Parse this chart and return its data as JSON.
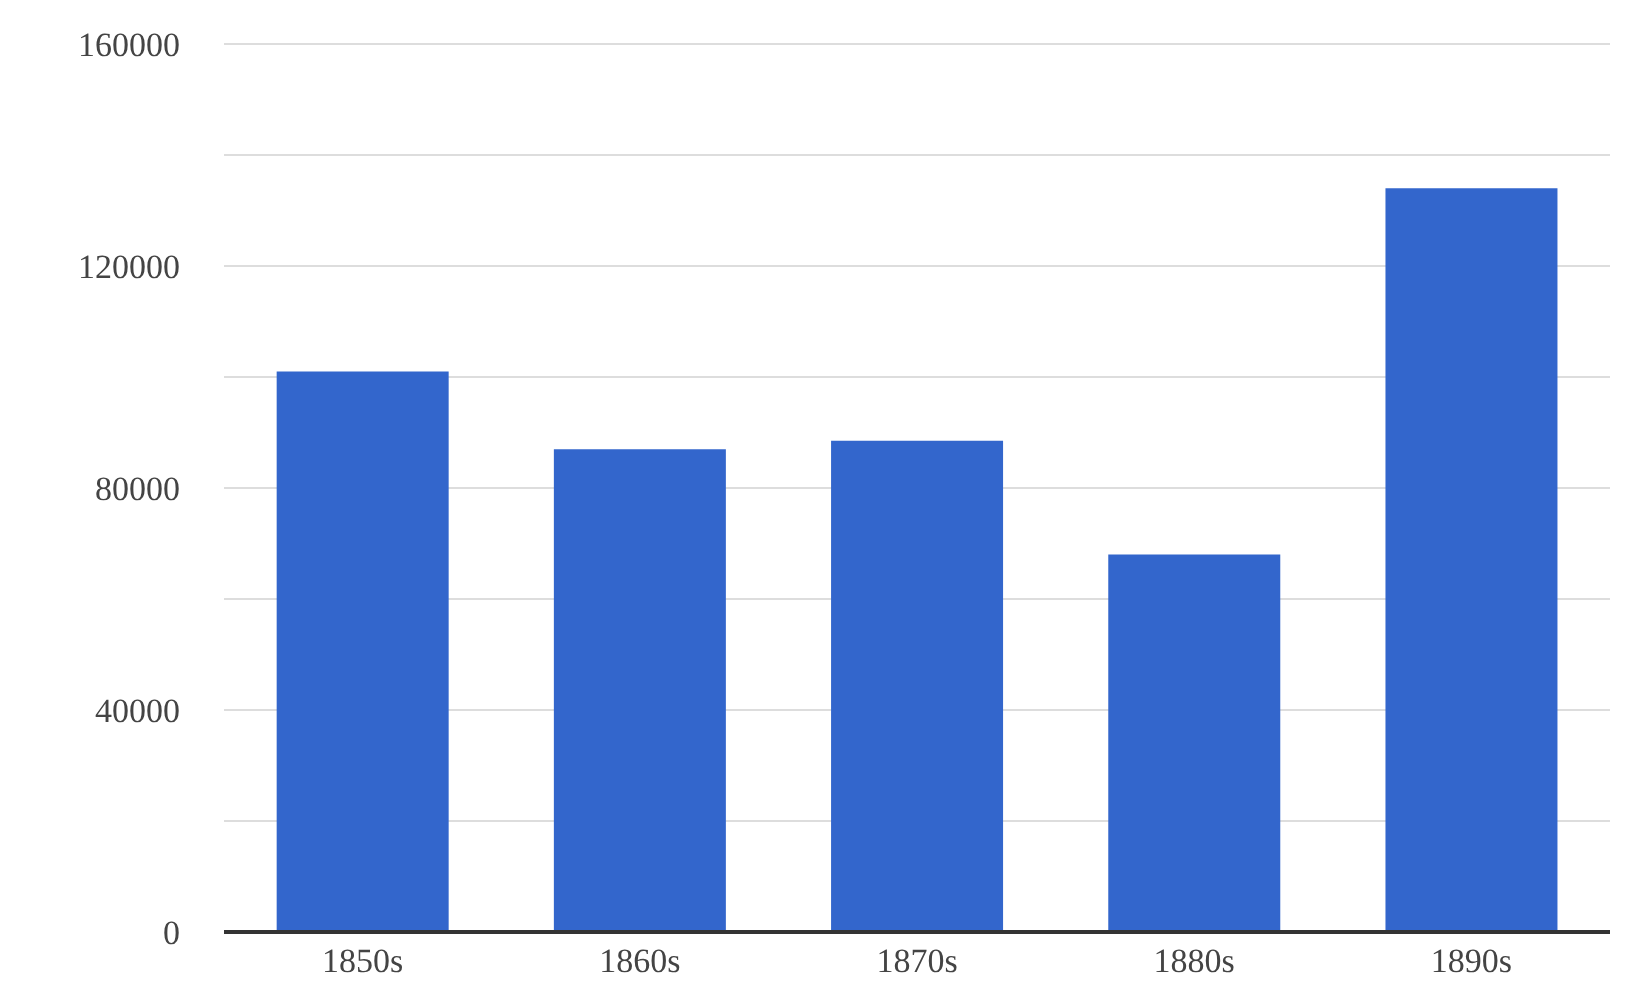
{
  "chart_data": {
    "type": "bar",
    "categories": [
      "1850s",
      "1860s",
      "1870s",
      "1880s",
      "1890s"
    ],
    "values": [
      101000,
      87000,
      88500,
      68000,
      134000
    ],
    "color": "#3366cc",
    "ylim": [
      0,
      160000
    ],
    "yticks": [
      0,
      {
        "value": 20000,
        "label": null
      },
      40000,
      {
        "value": 60000,
        "label": null
      },
      80000,
      {
        "value": 100000,
        "label": null
      },
      120000,
      {
        "value": 140000,
        "label": null
      },
      160000
    ],
    "grid": "y"
  }
}
